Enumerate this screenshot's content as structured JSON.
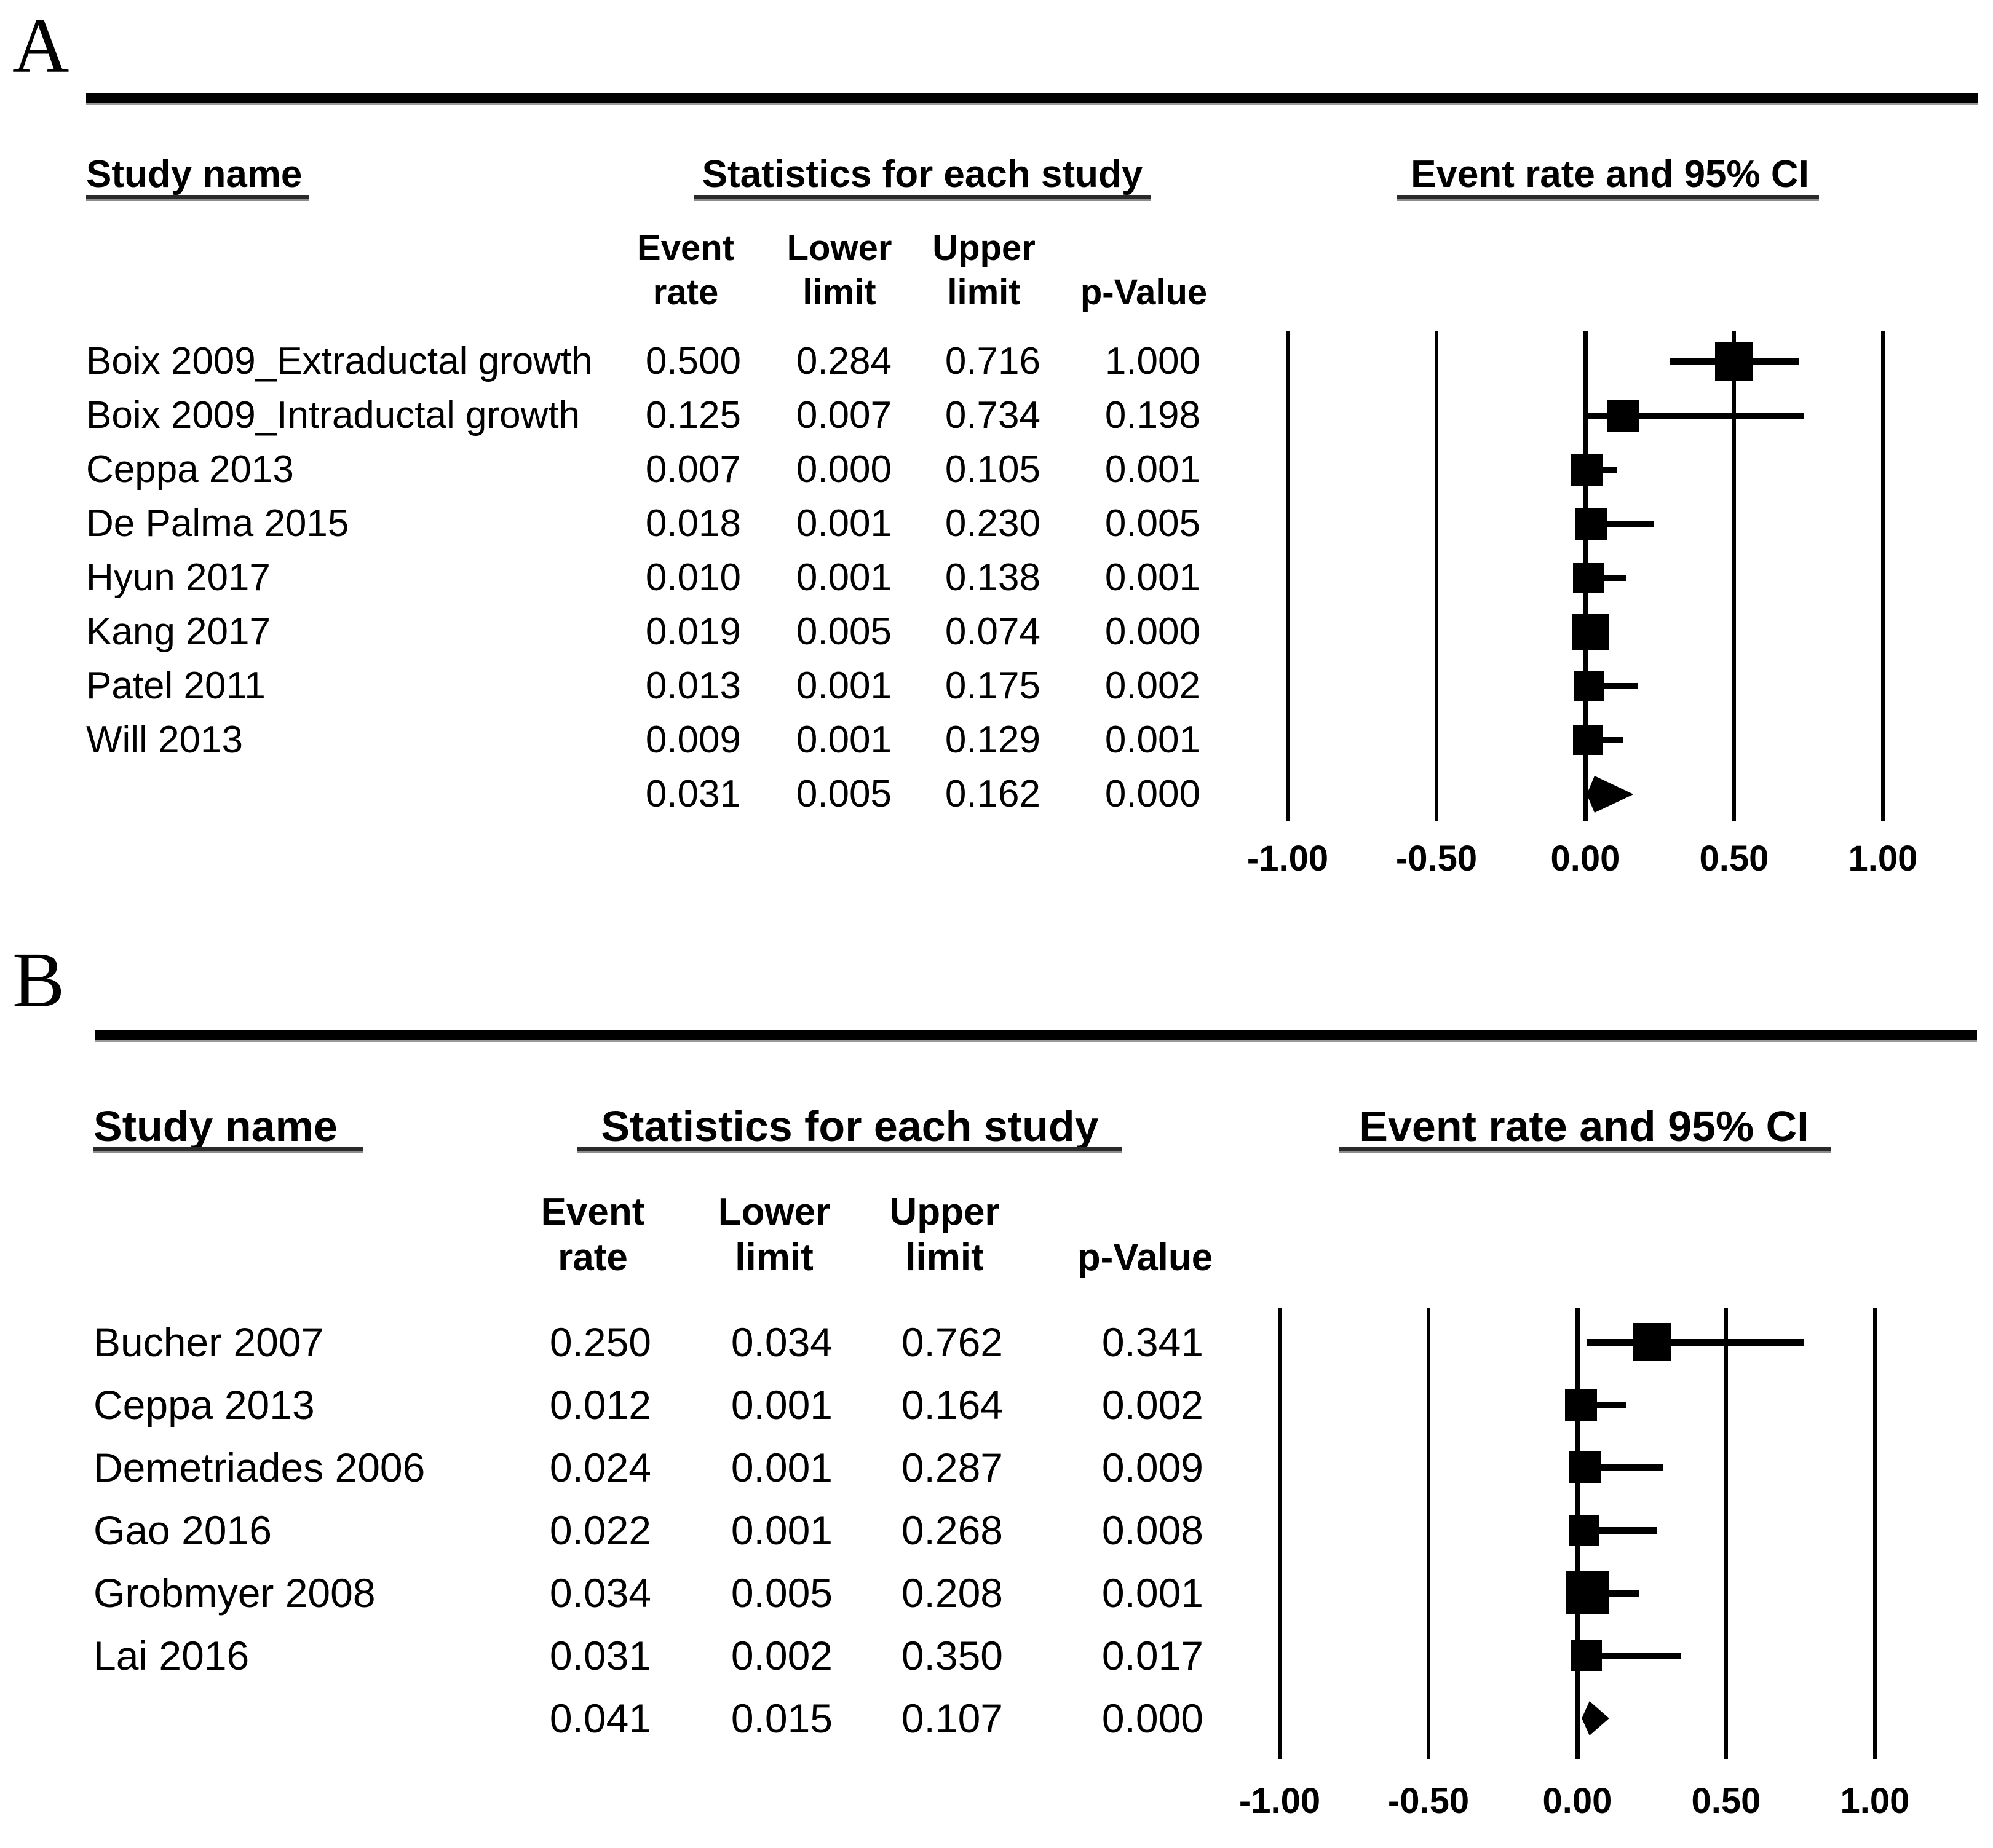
{
  "figure": {
    "panel_labels": [
      "A",
      "B"
    ],
    "colors": {
      "ink": "#000000",
      "background": "#ffffff"
    }
  },
  "chart_data": [
    {
      "type": "forest",
      "panel": "A",
      "col_group_titles": {
        "study": "Study name",
        "stats": "Statistics for each study",
        "plot": "Event rate and 95% CI"
      },
      "stat_columns": [
        {
          "line1": "Event",
          "line2": "rate"
        },
        {
          "line1": "Lower",
          "line2": "limit"
        },
        {
          "line1": "Upper",
          "line2": "limit"
        },
        {
          "line1": "",
          "line2": "p-Value"
        }
      ],
      "x_ticks": [
        "-1.00",
        "-0.50",
        "0.00",
        "0.50",
        "1.00"
      ],
      "xlim": [
        -1,
        1
      ],
      "legend_position": "none",
      "grid": "vertical-reference-lines",
      "studies": [
        {
          "name": "Boix 2009_Extraductal growth",
          "event_rate": "0.500",
          "lower_limit": "0.284",
          "upper_limit": "0.716",
          "p_value": "1.000",
          "marker_size": 62
        },
        {
          "name": "Boix 2009_Intraductal growth",
          "event_rate": "0.125",
          "lower_limit": "0.007",
          "upper_limit": "0.734",
          "p_value": "0.198",
          "marker_size": 52
        },
        {
          "name": "Ceppa 2013",
          "event_rate": "0.007",
          "lower_limit": "0.000",
          "upper_limit": "0.105",
          "p_value": "0.001",
          "marker_size": 52
        },
        {
          "name": "De Palma 2015",
          "event_rate": "0.018",
          "lower_limit": "0.001",
          "upper_limit": "0.230",
          "p_value": "0.005",
          "marker_size": 52
        },
        {
          "name": "Hyun 2017",
          "event_rate": "0.010",
          "lower_limit": "0.001",
          "upper_limit": "0.138",
          "p_value": "0.001",
          "marker_size": 50
        },
        {
          "name": "Kang 2017",
          "event_rate": "0.019",
          "lower_limit": "0.005",
          "upper_limit": "0.074",
          "p_value": "0.000",
          "marker_size": 60
        },
        {
          "name": "Patel 2011",
          "event_rate": "0.013",
          "lower_limit": "0.001",
          "upper_limit": "0.175",
          "p_value": "0.002",
          "marker_size": 50
        },
        {
          "name": "Will 2013",
          "event_rate": "0.009",
          "lower_limit": "0.001",
          "upper_limit": "0.129",
          "p_value": "0.001",
          "marker_size": 48
        }
      ],
      "summary": {
        "name": "",
        "event_rate": "0.031",
        "lower_limit": "0.005",
        "upper_limit": "0.162",
        "p_value": "0.000"
      }
    },
    {
      "type": "forest",
      "panel": "B",
      "col_group_titles": {
        "study": "Study name",
        "stats": "Statistics for each study",
        "plot": "Event rate and 95% CI"
      },
      "stat_columns": [
        {
          "line1": "Event",
          "line2": "rate"
        },
        {
          "line1": "Lower",
          "line2": "limit"
        },
        {
          "line1": "Upper",
          "line2": "limit"
        },
        {
          "line1": "",
          "line2": "p-Value"
        }
      ],
      "x_ticks": [
        "-1.00",
        "-0.50",
        "0.00",
        "0.50",
        "1.00"
      ],
      "xlim": [
        -1,
        1
      ],
      "legend_position": "none",
      "grid": "vertical-reference-lines",
      "studies": [
        {
          "name": "Bucher 2007",
          "event_rate": "0.250",
          "lower_limit": "0.034",
          "upper_limit": "0.762",
          "p_value": "0.341",
          "marker_size": 62
        },
        {
          "name": "Ceppa 2013",
          "event_rate": "0.012",
          "lower_limit": "0.001",
          "upper_limit": "0.164",
          "p_value": "0.002",
          "marker_size": 52
        },
        {
          "name": "Demetriades 2006",
          "event_rate": "0.024",
          "lower_limit": "0.001",
          "upper_limit": "0.287",
          "p_value": "0.009",
          "marker_size": 52
        },
        {
          "name": "Gao 2016",
          "event_rate": "0.022",
          "lower_limit": "0.001",
          "upper_limit": "0.268",
          "p_value": "0.008",
          "marker_size": 50
        },
        {
          "name": "Grobmyer 2008",
          "event_rate": "0.034",
          "lower_limit": "0.005",
          "upper_limit": "0.208",
          "p_value": "0.001",
          "marker_size": 70
        },
        {
          "name": "Lai 2016",
          "event_rate": "0.031",
          "lower_limit": "0.002",
          "upper_limit": "0.350",
          "p_value": "0.017",
          "marker_size": 50
        }
      ],
      "summary": {
        "name": "",
        "event_rate": "0.041",
        "lower_limit": "0.015",
        "upper_limit": "0.107",
        "p_value": "0.000"
      }
    }
  ]
}
